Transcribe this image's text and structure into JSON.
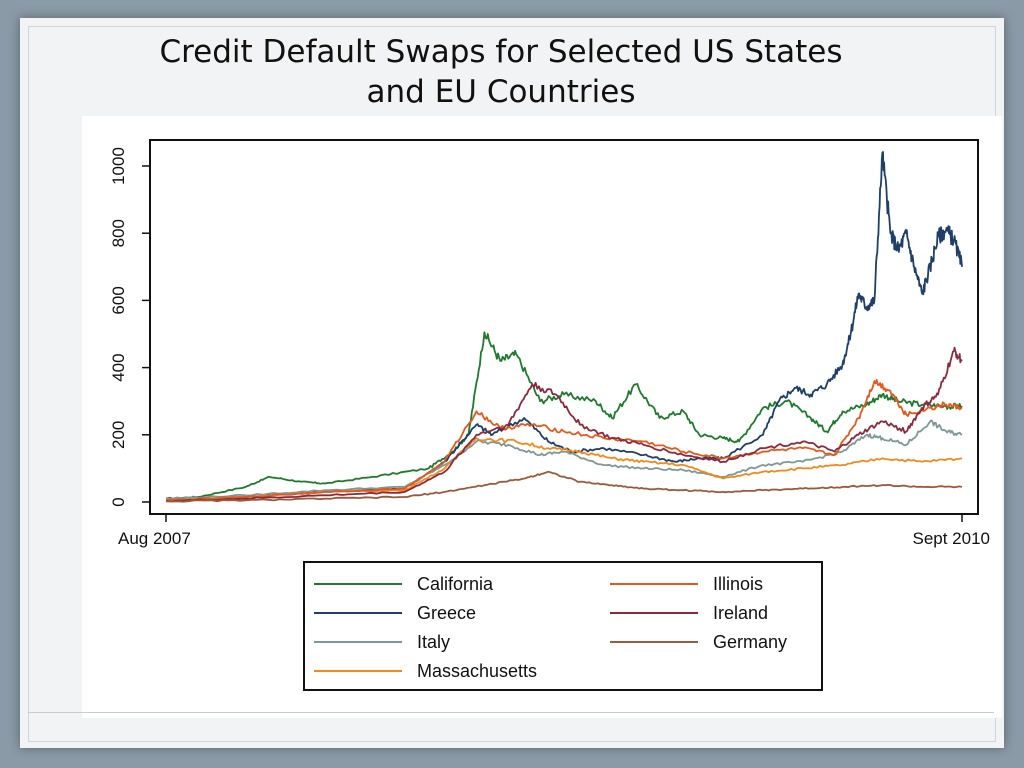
{
  "slide": {
    "title": "Credit Default Swaps for Selected US States and EU Countries"
  },
  "chart_data": {
    "type": "line",
    "title": "",
    "xlabel": "",
    "ylabel": "",
    "xlim": [
      "Aug 2007",
      "Sept 2010"
    ],
    "x_tick_labels": [
      "Aug 2007",
      "Sept 2010"
    ],
    "ylim": [
      0,
      1050
    ],
    "y_ticks": [
      0,
      200,
      400,
      600,
      800,
      1000
    ],
    "legend": {
      "placement": "bottom",
      "columns": 2
    },
    "grid": false,
    "series": [
      {
        "name": "California",
        "color": "#1f7a2e",
        "points": [
          [
            0,
            10
          ],
          [
            0.04,
            15
          ],
          [
            0.1,
            45
          ],
          [
            0.13,
            75
          ],
          [
            0.17,
            60
          ],
          [
            0.2,
            55
          ],
          [
            0.26,
            75
          ],
          [
            0.33,
            100
          ],
          [
            0.36,
            150
          ],
          [
            0.38,
            200
          ],
          [
            0.4,
            505
          ],
          [
            0.42,
            420
          ],
          [
            0.44,
            440
          ],
          [
            0.47,
            300
          ],
          [
            0.5,
            320
          ],
          [
            0.54,
            300
          ],
          [
            0.56,
            250
          ],
          [
            0.59,
            350
          ],
          [
            0.62,
            250
          ],
          [
            0.65,
            270
          ],
          [
            0.67,
            200
          ],
          [
            0.7,
            190
          ],
          [
            0.72,
            180
          ],
          [
            0.75,
            280
          ],
          [
            0.78,
            300
          ],
          [
            0.81,
            250
          ],
          [
            0.83,
            210
          ],
          [
            0.85,
            270
          ],
          [
            0.88,
            290
          ],
          [
            0.9,
            320
          ],
          [
            0.92,
            300
          ],
          [
            0.95,
            290
          ],
          [
            0.98,
            285
          ],
          [
            1.0,
            285
          ]
        ]
      },
      {
        "name": "Greece",
        "color": "#1e3f66",
        "points": [
          [
            0,
            5
          ],
          [
            0.1,
            15
          ],
          [
            0.2,
            30
          ],
          [
            0.3,
            40
          ],
          [
            0.35,
            120
          ],
          [
            0.39,
            230
          ],
          [
            0.41,
            200
          ],
          [
            0.45,
            250
          ],
          [
            0.48,
            180
          ],
          [
            0.51,
            150
          ],
          [
            0.55,
            160
          ],
          [
            0.6,
            140
          ],
          [
            0.64,
            120
          ],
          [
            0.67,
            130
          ],
          [
            0.7,
            130
          ],
          [
            0.75,
            200
          ],
          [
            0.77,
            300
          ],
          [
            0.79,
            340
          ],
          [
            0.81,
            320
          ],
          [
            0.83,
            350
          ],
          [
            0.85,
            410
          ],
          [
            0.86,
            500
          ],
          [
            0.87,
            620
          ],
          [
            0.88,
            580
          ],
          [
            0.89,
            600
          ],
          [
            0.9,
            1040
          ],
          [
            0.91,
            800
          ],
          [
            0.92,
            750
          ],
          [
            0.93,
            800
          ],
          [
            0.94,
            700
          ],
          [
            0.95,
            620
          ],
          [
            0.96,
            700
          ],
          [
            0.97,
            790
          ],
          [
            0.98,
            810
          ],
          [
            0.99,
            780
          ],
          [
            1.0,
            700
          ]
        ]
      },
      {
        "name": "Italy",
        "color": "#7f9894",
        "points": [
          [
            0,
            10
          ],
          [
            0.1,
            20
          ],
          [
            0.2,
            35
          ],
          [
            0.3,
            45
          ],
          [
            0.35,
            110
          ],
          [
            0.39,
            180
          ],
          [
            0.43,
            170
          ],
          [
            0.47,
            140
          ],
          [
            0.5,
            150
          ],
          [
            0.55,
            110
          ],
          [
            0.6,
            100
          ],
          [
            0.65,
            95
          ],
          [
            0.7,
            75
          ],
          [
            0.75,
            110
          ],
          [
            0.8,
            120
          ],
          [
            0.85,
            150
          ],
          [
            0.88,
            200
          ],
          [
            0.9,
            190
          ],
          [
            0.93,
            170
          ],
          [
            0.96,
            240
          ],
          [
            0.98,
            210
          ],
          [
            1.0,
            200
          ]
        ]
      },
      {
        "name": "Massachusetts",
        "color": "#f08a1c",
        "points": [
          [
            0,
            5
          ],
          [
            0.1,
            15
          ],
          [
            0.2,
            30
          ],
          [
            0.3,
            35
          ],
          [
            0.35,
            100
          ],
          [
            0.39,
            190
          ],
          [
            0.44,
            180
          ],
          [
            0.48,
            160
          ],
          [
            0.52,
            150
          ],
          [
            0.56,
            130
          ],
          [
            0.6,
            120
          ],
          [
            0.65,
            110
          ],
          [
            0.7,
            70
          ],
          [
            0.75,
            90
          ],
          [
            0.8,
            100
          ],
          [
            0.85,
            110
          ],
          [
            0.9,
            130
          ],
          [
            0.95,
            120
          ],
          [
            1.0,
            130
          ]
        ]
      },
      {
        "name": "Illinois",
        "color": "#e45a1e",
        "points": [
          [
            0,
            5
          ],
          [
            0.1,
            15
          ],
          [
            0.2,
            30
          ],
          [
            0.3,
            40
          ],
          [
            0.35,
            120
          ],
          [
            0.39,
            270
          ],
          [
            0.42,
            220
          ],
          [
            0.46,
            230
          ],
          [
            0.5,
            210
          ],
          [
            0.55,
            190
          ],
          [
            0.6,
            180
          ],
          [
            0.65,
            150
          ],
          [
            0.7,
            130
          ],
          [
            0.75,
            150
          ],
          [
            0.8,
            160
          ],
          [
            0.84,
            140
          ],
          [
            0.87,
            250
          ],
          [
            0.89,
            360
          ],
          [
            0.91,
            330
          ],
          [
            0.93,
            260
          ],
          [
            0.96,
            280
          ],
          [
            0.98,
            290
          ],
          [
            1.0,
            280
          ]
        ]
      },
      {
        "name": "Ireland",
        "color": "#8b2a3c",
        "points": [
          [
            0,
            3
          ],
          [
            0.1,
            10
          ],
          [
            0.2,
            20
          ],
          [
            0.3,
            30
          ],
          [
            0.35,
            90
          ],
          [
            0.39,
            200
          ],
          [
            0.43,
            230
          ],
          [
            0.46,
            350
          ],
          [
            0.49,
            320
          ],
          [
            0.52,
            230
          ],
          [
            0.56,
            190
          ],
          [
            0.6,
            170
          ],
          [
            0.65,
            140
          ],
          [
            0.7,
            120
          ],
          [
            0.75,
            160
          ],
          [
            0.8,
            180
          ],
          [
            0.84,
            150
          ],
          [
            0.87,
            200
          ],
          [
            0.9,
            240
          ],
          [
            0.93,
            210
          ],
          [
            0.95,
            280
          ],
          [
            0.97,
            320
          ],
          [
            0.99,
            450
          ],
          [
            1.0,
            420
          ]
        ]
      },
      {
        "name": "Germany",
        "color": "#9c5a3c",
        "points": [
          [
            0,
            2
          ],
          [
            0.1,
            5
          ],
          [
            0.2,
            10
          ],
          [
            0.3,
            15
          ],
          [
            0.35,
            30
          ],
          [
            0.4,
            50
          ],
          [
            0.45,
            70
          ],
          [
            0.48,
            90
          ],
          [
            0.52,
            60
          ],
          [
            0.56,
            50
          ],
          [
            0.6,
            40
          ],
          [
            0.65,
            35
          ],
          [
            0.7,
            30
          ],
          [
            0.75,
            35
          ],
          [
            0.8,
            40
          ],
          [
            0.85,
            45
          ],
          [
            0.9,
            50
          ],
          [
            0.95,
            45
          ],
          [
            1.0,
            45
          ]
        ]
      }
    ]
  }
}
